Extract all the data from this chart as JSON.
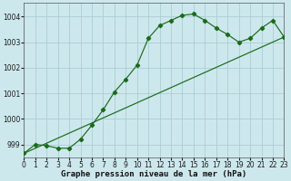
{
  "line1_x": [
    0,
    1,
    2,
    3,
    4,
    5,
    6,
    7,
    8,
    9,
    10,
    11,
    12,
    13,
    14,
    15,
    16,
    17,
    18,
    19,
    20,
    21,
    22,
    23
  ],
  "line1_y": [
    998.65,
    999.0,
    998.95,
    998.85,
    998.85,
    999.2,
    999.75,
    1000.35,
    1001.05,
    1001.55,
    1002.1,
    1003.15,
    1003.65,
    1003.85,
    1004.05,
    1004.1,
    1003.85,
    1003.55,
    1003.3,
    1003.0,
    1003.15,
    1003.55,
    1003.85,
    1003.2
  ],
  "line2_x": [
    0,
    23
  ],
  "line2_y": [
    998.65,
    1003.2
  ],
  "line_color": "#1a6b1a",
  "bg_color": "#cde8ed",
  "grid_color": "#aacdd5",
  "xlabel": "Graphe pression niveau de la mer (hPa)",
  "xlim": [
    0,
    23
  ],
  "ylim": [
    998.5,
    1004.55
  ],
  "yticks": [
    999,
    1000,
    1001,
    1002,
    1003,
    1004
  ],
  "xticks": [
    0,
    1,
    2,
    3,
    4,
    5,
    6,
    7,
    8,
    9,
    10,
    11,
    12,
    13,
    14,
    15,
    16,
    17,
    18,
    19,
    20,
    21,
    22,
    23
  ],
  "tick_fontsize": 5.5,
  "xlabel_fontsize": 6.5
}
